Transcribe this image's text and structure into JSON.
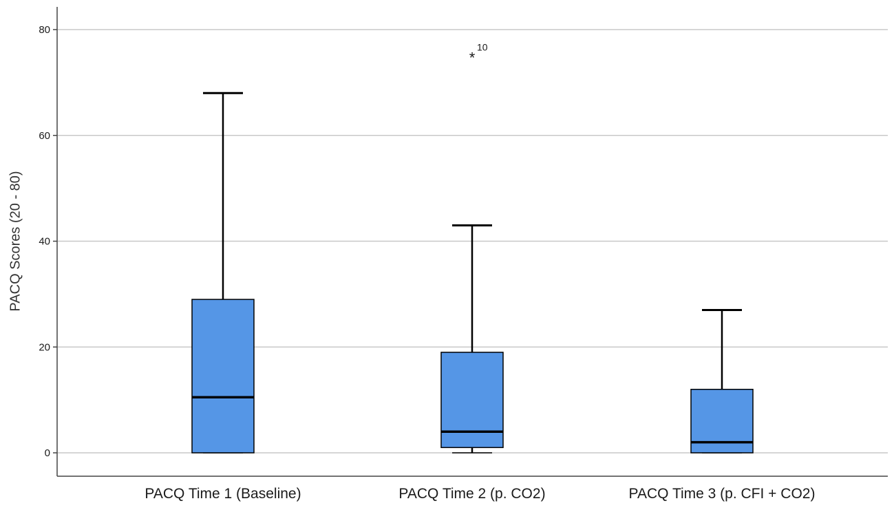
{
  "chart_data": {
    "type": "boxplot",
    "title": "",
    "xlabel": "",
    "ylabel": "PACQ Scores (20 - 80)",
    "ylim": [
      -5,
      85
    ],
    "yticks": [
      0,
      20,
      40,
      60,
      80
    ],
    "grid": true,
    "box_color": "#5596E6",
    "categories": [
      "PACQ Time 1 (Baseline)",
      "PACQ Time 2 (p. CO2)",
      "PACQ Time 3 (p. CFI + CO2)"
    ],
    "boxes": [
      {
        "category": "PACQ Time 1 (Baseline)",
        "min": 0,
        "q1": 0,
        "median": 10.5,
        "q3": 29,
        "max": 68,
        "outliers": []
      },
      {
        "category": "PACQ Time 2 (p. CO2)",
        "min": 0,
        "q1": 1,
        "median": 4,
        "q3": 19,
        "max": 43,
        "outliers": [
          {
            "value": 75,
            "label": "10",
            "marker": "*"
          }
        ]
      },
      {
        "category": "PACQ Time 3 (p. CFI + CO2)",
        "min": 0,
        "q1": 0,
        "median": 2,
        "q3": 12,
        "max": 27,
        "outliers": []
      }
    ]
  }
}
